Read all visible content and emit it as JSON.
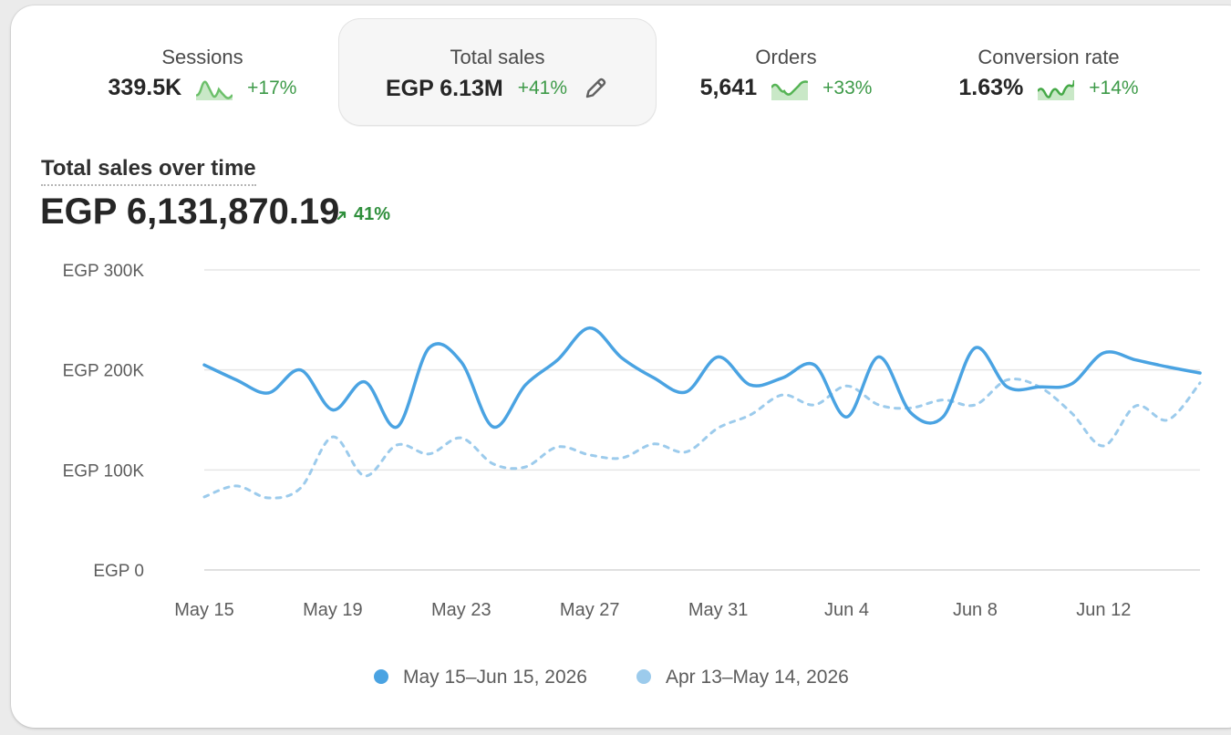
{
  "metrics": [
    {
      "label": "Sessions",
      "value": "339.5K",
      "change": "+17%"
    },
    {
      "label": "Total sales",
      "value": "EGP 6.13M",
      "change": "+41%"
    },
    {
      "label": "Orders",
      "value": "5,641",
      "change": "+33%"
    },
    {
      "label": "Conversion rate",
      "value": "1.63%",
      "change": "+14%"
    }
  ],
  "chart_header": {
    "title": "Total sales over time",
    "total": "EGP 6,131,870.19",
    "change": "41%"
  },
  "colors": {
    "current": "#4aa3e2",
    "previous": "#9ccbec",
    "positive": "#3d9a48"
  },
  "chart_data": {
    "type": "line",
    "title": "Total sales over time",
    "ylabel": "",
    "xlabel": "",
    "ylim": [
      0,
      300000
    ],
    "yticks": [
      0,
      100000,
      200000,
      300000
    ],
    "ytick_labels": [
      "EGP 0",
      "EGP 100K",
      "EGP 200K",
      "EGP 300K"
    ],
    "x_tick_labels": [
      "May 15",
      "May 19",
      "May 23",
      "May 27",
      "May 31",
      "Jun 4",
      "Jun 8",
      "Jun 12"
    ],
    "x_tick_index": [
      0,
      4,
      8,
      12,
      16,
      20,
      24,
      28
    ],
    "grid": true,
    "legend_position": "bottom",
    "series": [
      {
        "name": "May 15–Jun 15, 2026",
        "style": "solid",
        "values": [
          205000,
          190000,
          177000,
          200000,
          160000,
          188000,
          143000,
          222000,
          208000,
          143000,
          185000,
          210000,
          242000,
          212000,
          192000,
          178000,
          213000,
          185000,
          192000,
          205000,
          153000,
          213000,
          157000,
          153000,
          222000,
          183000,
          183000,
          186000,
          217000,
          210000,
          203000,
          197000
        ]
      },
      {
        "name": "Apr 13–May 14, 2026",
        "style": "dashed",
        "values": [
          73000,
          84000,
          72000,
          82000,
          133000,
          94000,
          125000,
          116000,
          132000,
          106000,
          103000,
          123000,
          115000,
          112000,
          126000,
          118000,
          142000,
          155000,
          175000,
          165000,
          184000,
          165000,
          162000,
          170000,
          165000,
          190000,
          183000,
          157000,
          124000,
          164000,
          150000,
          187000
        ]
      }
    ]
  }
}
